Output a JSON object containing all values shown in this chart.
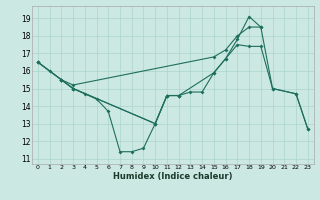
{
  "xlabel": "Humidex (Indice chaleur)",
  "bg_color": "#cce8e2",
  "grid_color": "#aad4cc",
  "line_color": "#1e6e5e",
  "xlim": [
    -0.5,
    23.5
  ],
  "ylim": [
    10.7,
    19.7
  ],
  "yticks": [
    11,
    12,
    13,
    14,
    15,
    16,
    17,
    18,
    19
  ],
  "xticks": [
    0,
    1,
    2,
    3,
    4,
    5,
    6,
    7,
    8,
    9,
    10,
    11,
    12,
    13,
    14,
    15,
    16,
    17,
    18,
    19,
    20,
    21,
    22,
    23
  ],
  "lineA_x": [
    0,
    2,
    3,
    15,
    16,
    17,
    18,
    19
  ],
  "lineA_y": [
    16.5,
    15.5,
    15.2,
    16.8,
    17.2,
    18.0,
    18.5,
    18.5
  ],
  "lineB_x": [
    2,
    3,
    10,
    11,
    12,
    15,
    16,
    17,
    18,
    19,
    20,
    22,
    23
  ],
  "lineB_y": [
    15.5,
    15.0,
    13.0,
    14.6,
    14.6,
    15.9,
    16.7,
    17.8,
    19.1,
    18.5,
    15.0,
    14.7,
    12.7
  ],
  "lineC_x": [
    0,
    1,
    2,
    3,
    4,
    5,
    6,
    7,
    8,
    9,
    10,
    11,
    12
  ],
  "lineC_y": [
    16.5,
    16.0,
    15.5,
    15.0,
    14.7,
    14.4,
    13.7,
    11.4,
    11.4,
    11.6,
    13.0,
    14.6,
    14.6
  ],
  "lineD_x": [
    0,
    2,
    3,
    10,
    11,
    12,
    13,
    14,
    15,
    16,
    17,
    18,
    19,
    20,
    22,
    23
  ],
  "lineD_y": [
    16.5,
    15.5,
    15.0,
    13.0,
    14.6,
    14.6,
    14.8,
    14.8,
    15.9,
    16.7,
    17.5,
    17.4,
    17.4,
    15.0,
    14.7,
    12.7
  ]
}
